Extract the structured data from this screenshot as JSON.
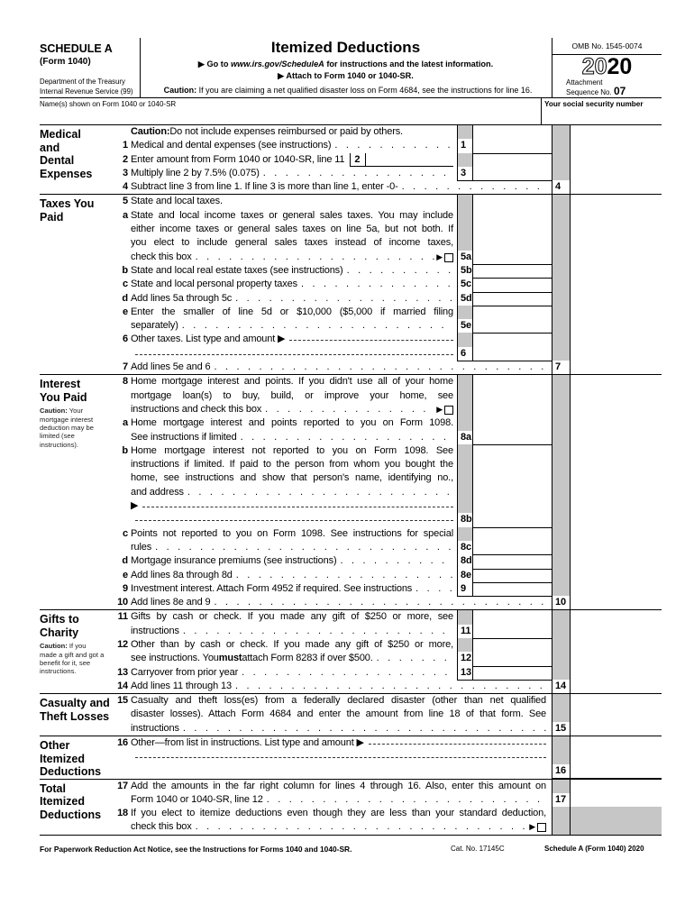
{
  "header": {
    "schedule": "SCHEDULE A",
    "form": "(Form 1040)",
    "dept1": "Department of the Treasury",
    "dept2": "Internal Revenue Service (99)",
    "title": "Itemized Deductions",
    "goto_pre": "▶ Go to ",
    "goto_url": "www.irs.gov/ScheduleA",
    "goto_post": " for instructions and the latest information.",
    "attach": "▶ Attach to Form 1040 or 1040-SR.",
    "caution_label": "Caution:",
    "caution_text": " If you are claiming a net qualified disaster loss on Form 4684, see the instructions for line 16.",
    "omb": "OMB No. 1545-0074",
    "year_outline": "20",
    "year_bold": "20",
    "attachment": "Attachment",
    "sequence": "Sequence No.",
    "sequence_no": "07",
    "names_label": "Name(s) shown on Form 1040 or 1040-SR",
    "ssn_label": "Your social security number",
    "names_value": "",
    "ssn_value": ""
  },
  "colors": {
    "shade": "#c6c6c6",
    "ink": "#000000"
  },
  "sections": [
    {
      "id": "medical",
      "label_lines": [
        "Medical",
        "and",
        "Dental",
        "Expenses"
      ],
      "items": [
        {
          "num": "",
          "innerCol": true,
          "lines": [
            {
              "text": "",
              "bold": "Caution:",
              "text2": " Do not include expenses reimbursed or paid by others."
            }
          ]
        },
        {
          "num": "1",
          "inner": "1",
          "lines": [
            {
              "text": "Medical and dental expenses (see instructions)",
              "lead": "dots"
            }
          ]
        },
        {
          "num": "2",
          "innerCol": true,
          "inlineBox": "2",
          "lines": [
            {
              "text": "Enter amount from Form 1040 or 1040-SR, line 11"
            }
          ]
        },
        {
          "num": "3",
          "inner": "3",
          "lines": [
            {
              "text": "Multiply line 2 by 7.5% (0.075)",
              "lead": "dots"
            }
          ]
        },
        {
          "num": "4",
          "outer": "4",
          "lines": [
            {
              "text": "Subtract line 3 from line 1. If line 3 is more than line 1, enter -0-",
              "lead": "dots"
            }
          ]
        }
      ]
    },
    {
      "id": "taxes",
      "label_lines": [
        "Taxes You",
        "Paid"
      ],
      "items": [
        {
          "num": "5",
          "innerCol": true,
          "lines": [
            {
              "text": "State and local taxes."
            }
          ]
        },
        {
          "num": "a",
          "inner": "5a",
          "lines": [
            {
              "text": "State and local income taxes or general sales taxes. You may include"
            },
            {
              "text": "either income taxes or general sales taxes on line 5a, but not both. If"
            },
            {
              "text": "you elect to include general sales taxes instead of income taxes,"
            },
            {
              "text": "check this box",
              "lead": "dots",
              "box": true
            }
          ]
        },
        {
          "num": "b",
          "inner": "5b",
          "lines": [
            {
              "text": "State and local real estate taxes (see instructions)",
              "lead": "dots"
            }
          ]
        },
        {
          "num": "c",
          "inner": "5c",
          "lines": [
            {
              "text": "State and local personal property taxes",
              "lead": "dots"
            }
          ]
        },
        {
          "num": "d",
          "inner": "5d",
          "lines": [
            {
              "text": "Add lines 5a through 5c",
              "lead": "dots"
            }
          ]
        },
        {
          "num": "e",
          "inner": "5e",
          "lines": [
            {
              "text": "Enter the smaller of line 5d or $10,000 ($5,000 if married filing"
            },
            {
              "text": "separately)",
              "lead": "dots"
            }
          ]
        },
        {
          "num": "6",
          "inner": "6",
          "lines": [
            {
              "text": "Other taxes. List type and amount ▶",
              "lead": "dash"
            },
            {
              "text": "",
              "lead": "dash"
            }
          ]
        },
        {
          "num": "7",
          "outer": "7",
          "lines": [
            {
              "text": "Add lines 5e and 6",
              "lead": "dots"
            }
          ]
        }
      ]
    },
    {
      "id": "interest",
      "label_lines": [
        "Interest",
        "You Paid"
      ],
      "caution_label": "Caution:",
      "caution_text": " Your mortgage interest deduction may be limited (see instructions).",
      "items": [
        {
          "num": "8",
          "innerCol": true,
          "lines": [
            {
              "text": "Home mortgage interest and points. If you didn't use all of your home"
            },
            {
              "text": "mortgage loan(s) to buy, build, or improve your home, see"
            },
            {
              "text": "instructions and check this box",
              "lead": "dots",
              "box": true
            }
          ]
        },
        {
          "num": "a",
          "inner": "8a",
          "lines": [
            {
              "text": "Home mortgage interest and points reported to you on Form 1098."
            },
            {
              "text": "See instructions if limited",
              "lead": "dots"
            }
          ]
        },
        {
          "num": "b",
          "inner": "8b",
          "lines": [
            {
              "text": "Home mortgage interest not reported to you on Form 1098. See"
            },
            {
              "text": "instructions if limited. If paid to the person from whom you bought the"
            },
            {
              "text": "home, see instructions and show that person's name, identifying no.,"
            },
            {
              "text": "and address",
              "lead": "dots"
            },
            {
              "text": "▶",
              "lead": "dash"
            },
            {
              "text": "",
              "lead": "dash"
            }
          ]
        },
        {
          "num": "c",
          "inner": "8c",
          "lines": [
            {
              "text": "Points not reported to you on Form 1098. See instructions for special"
            },
            {
              "text": "rules",
              "lead": "dots"
            }
          ]
        },
        {
          "num": "d",
          "inner": "8d",
          "lines": [
            {
              "text": "Mortgage insurance premiums (see instructions)",
              "lead": "dots"
            }
          ]
        },
        {
          "num": "e",
          "inner": "8e",
          "lines": [
            {
              "text": "Add lines 8a through 8d",
              "lead": "dots"
            }
          ]
        },
        {
          "num": "9",
          "inner": "9",
          "lines": [
            {
              "text": "Investment interest. Attach Form 4952 if required. See instructions",
              "lead": "dots"
            }
          ]
        },
        {
          "num": "10",
          "outer": "10",
          "lines": [
            {
              "text": "Add lines 8e and 9",
              "lead": "dots"
            }
          ]
        }
      ]
    },
    {
      "id": "gifts",
      "label_lines": [
        "Gifts to",
        "Charity"
      ],
      "caution_label": "Caution:",
      "caution_text": " If you made a gift and got a benefit for it, see instructions.",
      "items": [
        {
          "num": "11",
          "inner": "11",
          "lines": [
            {
              "text": "Gifts by cash or check. If you made any gift of $250 or more, see"
            },
            {
              "text": "instructions",
              "lead": "dots"
            }
          ]
        },
        {
          "num": "12",
          "inner": "12",
          "lines": [
            {
              "text": "Other than by cash or check. If you made any gift of $250 or more,"
            },
            {
              "text": "see instructions. You ",
              "bold": "must",
              "text2": " attach Form 8283 if over $500.",
              "lead": "dots"
            }
          ]
        },
        {
          "num": "13",
          "inner": "13",
          "lines": [
            {
              "text": "Carryover from prior year",
              "lead": "dots"
            }
          ]
        },
        {
          "num": "14",
          "outer": "14",
          "lines": [
            {
              "text": "Add lines 11 through 13",
              "lead": "dots"
            }
          ]
        }
      ]
    },
    {
      "id": "casualty",
      "label_lines": [
        "Casualty and",
        "Theft Losses"
      ],
      "items": [
        {
          "num": "15",
          "outer": "15",
          "lines": [
            {
              "text": "Casualty and theft loss(es) from a federally declared disaster (other than net qualified"
            },
            {
              "text": "disaster losses). Attach Form 4684 and enter the amount from line 18 of that form. See"
            },
            {
              "text": "instructions",
              "lead": "dots"
            }
          ]
        }
      ]
    },
    {
      "id": "other",
      "label_lines": [
        "Other",
        "Itemized",
        "Deductions"
      ],
      "items": [
        {
          "num": "16",
          "outer": "16",
          "lines": [
            {
              "text": "Other—from list in instructions. List type and amount ▶",
              "lead": "dash"
            },
            {
              "text": "",
              "lead": "dash"
            },
            {
              "text": ""
            }
          ]
        }
      ]
    },
    {
      "id": "total",
      "label_lines": [
        "Total",
        "Itemized",
        "Deductions"
      ],
      "items": [
        {
          "num": "17",
          "outer": "17",
          "lines": [
            {
              "text": "Add the amounts in the far right column for lines 4 through 16. Also, enter this amount on"
            },
            {
              "text": "Form 1040 or 1040-SR, line 12",
              "lead": "dots"
            }
          ]
        },
        {
          "num": "18",
          "outerShade": true,
          "lines": [
            {
              "text": "If you elect to itemize deductions even though they are less than your standard deduction,"
            },
            {
              "text": "check this box",
              "lead": "dots",
              "box": true
            }
          ]
        }
      ]
    }
  ],
  "footer": {
    "notice": "For Paperwork Reduction Act Notice, see the Instructions for Forms 1040 and 1040-SR.",
    "cat": "Cat. No. 17145C",
    "form_id": "Schedule A (Form 1040) 2020"
  }
}
